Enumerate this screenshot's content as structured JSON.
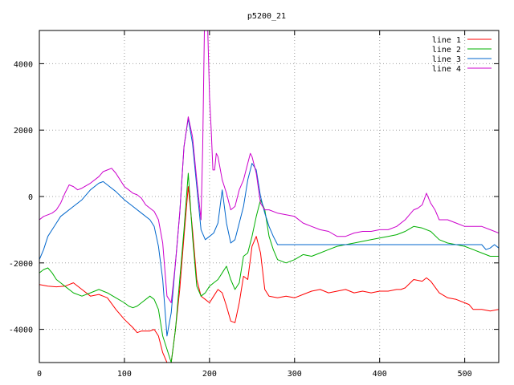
{
  "chart_data": {
    "type": "line",
    "title": "p5200_21",
    "xlabel": "",
    "ylabel": "",
    "xlim": [
      0,
      540
    ],
    "ylim": [
      -5000,
      5000
    ],
    "x_ticks": [
      0,
      100,
      200,
      300,
      400,
      500
    ],
    "y_ticks": [
      -4000,
      -2000,
      0,
      2000,
      4000
    ],
    "grid": true,
    "legend_position": "top-right",
    "series": [
      {
        "name": "line 1",
        "color": "#ff0000",
        "points": [
          [
            0,
            -2650
          ],
          [
            10,
            -2700
          ],
          [
            20,
            -2720
          ],
          [
            30,
            -2700
          ],
          [
            40,
            -2600
          ],
          [
            50,
            -2800
          ],
          [
            60,
            -3000
          ],
          [
            70,
            -2950
          ],
          [
            80,
            -3050
          ],
          [
            90,
            -3400
          ],
          [
            100,
            -3700
          ],
          [
            110,
            -3950
          ],
          [
            115,
            -4100
          ],
          [
            120,
            -4050
          ],
          [
            130,
            -4050
          ],
          [
            135,
            -4000
          ],
          [
            140,
            -4200
          ],
          [
            145,
            -4700
          ],
          [
            150,
            -5000
          ],
          [
            155,
            -5000
          ],
          [
            160,
            -4000
          ],
          [
            165,
            -2800
          ],
          [
            170,
            -1200
          ],
          [
            175,
            300
          ],
          [
            180,
            -1000
          ],
          [
            185,
            -2500
          ],
          [
            190,
            -3000
          ],
          [
            195,
            -3100
          ],
          [
            200,
            -3200
          ],
          [
            205,
            -3000
          ],
          [
            210,
            -2800
          ],
          [
            215,
            -2900
          ],
          [
            220,
            -3300
          ],
          [
            225,
            -3750
          ],
          [
            230,
            -3800
          ],
          [
            235,
            -3200
          ],
          [
            240,
            -2400
          ],
          [
            245,
            -2500
          ],
          [
            250,
            -1500
          ],
          [
            255,
            -1200
          ],
          [
            260,
            -1700
          ],
          [
            265,
            -2800
          ],
          [
            270,
            -3000
          ],
          [
            280,
            -3050
          ],
          [
            290,
            -3000
          ],
          [
            300,
            -3050
          ],
          [
            310,
            -2950
          ],
          [
            320,
            -2850
          ],
          [
            330,
            -2800
          ],
          [
            340,
            -2900
          ],
          [
            350,
            -2850
          ],
          [
            360,
            -2800
          ],
          [
            370,
            -2900
          ],
          [
            380,
            -2850
          ],
          [
            390,
            -2900
          ],
          [
            400,
            -2850
          ],
          [
            410,
            -2850
          ],
          [
            420,
            -2800
          ],
          [
            425,
            -2800
          ],
          [
            430,
            -2750
          ],
          [
            440,
            -2500
          ],
          [
            450,
            -2550
          ],
          [
            455,
            -2450
          ],
          [
            460,
            -2550
          ],
          [
            470,
            -2900
          ],
          [
            480,
            -3050
          ],
          [
            490,
            -3100
          ],
          [
            500,
            -3200
          ],
          [
            505,
            -3250
          ],
          [
            510,
            -3400
          ],
          [
            520,
            -3400
          ],
          [
            530,
            -3450
          ],
          [
            540,
            -3400
          ]
        ]
      },
      {
        "name": "line 2",
        "color": "#00b000",
        "points": [
          [
            0,
            -2300
          ],
          [
            5,
            -2200
          ],
          [
            10,
            -2150
          ],
          [
            15,
            -2300
          ],
          [
            20,
            -2500
          ],
          [
            25,
            -2600
          ],
          [
            30,
            -2700
          ],
          [
            40,
            -2900
          ],
          [
            50,
            -3000
          ],
          [
            60,
            -2900
          ],
          [
            70,
            -2800
          ],
          [
            80,
            -2900
          ],
          [
            90,
            -3050
          ],
          [
            100,
            -3200
          ],
          [
            105,
            -3300
          ],
          [
            110,
            -3350
          ],
          [
            115,
            -3300
          ],
          [
            120,
            -3200
          ],
          [
            130,
            -3000
          ],
          [
            135,
            -3100
          ],
          [
            140,
            -3400
          ],
          [
            145,
            -4200
          ],
          [
            150,
            -4600
          ],
          [
            155,
            -5000
          ],
          [
            160,
            -4000
          ],
          [
            165,
            -2500
          ],
          [
            170,
            -1000
          ],
          [
            175,
            700
          ],
          [
            180,
            -1200
          ],
          [
            185,
            -2700
          ],
          [
            190,
            -3000
          ],
          [
            195,
            -2900
          ],
          [
            200,
            -2700
          ],
          [
            205,
            -2600
          ],
          [
            210,
            -2500
          ],
          [
            215,
            -2300
          ],
          [
            220,
            -2100
          ],
          [
            225,
            -2500
          ],
          [
            230,
            -2800
          ],
          [
            235,
            -2600
          ],
          [
            240,
            -1800
          ],
          [
            245,
            -1700
          ],
          [
            250,
            -1200
          ],
          [
            255,
            -600
          ],
          [
            260,
            -100
          ],
          [
            265,
            -400
          ],
          [
            270,
            -1200
          ],
          [
            275,
            -1600
          ],
          [
            280,
            -1900
          ],
          [
            290,
            -2000
          ],
          [
            300,
            -1900
          ],
          [
            310,
            -1750
          ],
          [
            320,
            -1800
          ],
          [
            330,
            -1700
          ],
          [
            340,
            -1600
          ],
          [
            350,
            -1500
          ],
          [
            360,
            -1450
          ],
          [
            370,
            -1400
          ],
          [
            380,
            -1350
          ],
          [
            390,
            -1300
          ],
          [
            400,
            -1250
          ],
          [
            410,
            -1200
          ],
          [
            420,
            -1150
          ],
          [
            430,
            -1050
          ],
          [
            440,
            -900
          ],
          [
            450,
            -950
          ],
          [
            460,
            -1050
          ],
          [
            470,
            -1300
          ],
          [
            480,
            -1400
          ],
          [
            490,
            -1450
          ],
          [
            500,
            -1500
          ],
          [
            510,
            -1600
          ],
          [
            520,
            -1700
          ],
          [
            530,
            -1800
          ],
          [
            540,
            -1800
          ]
        ]
      },
      {
        "name": "line 3",
        "color": "#0066cc",
        "points": [
          [
            0,
            -1900
          ],
          [
            5,
            -1600
          ],
          [
            10,
            -1200
          ],
          [
            15,
            -1000
          ],
          [
            20,
            -800
          ],
          [
            25,
            -600
          ],
          [
            30,
            -500
          ],
          [
            40,
            -300
          ],
          [
            50,
            -100
          ],
          [
            60,
            200
          ],
          [
            70,
            400
          ],
          [
            75,
            450
          ],
          [
            80,
            350
          ],
          [
            90,
            150
          ],
          [
            100,
            -100
          ],
          [
            110,
            -300
          ],
          [
            120,
            -500
          ],
          [
            130,
            -700
          ],
          [
            135,
            -900
          ],
          [
            140,
            -1500
          ],
          [
            145,
            -2500
          ],
          [
            150,
            -4200
          ],
          [
            155,
            -3500
          ],
          [
            160,
            -2000
          ],
          [
            165,
            -500
          ],
          [
            170,
            1500
          ],
          [
            175,
            2350
          ],
          [
            180,
            1600
          ],
          [
            185,
            300
          ],
          [
            190,
            -1000
          ],
          [
            195,
            -1300
          ],
          [
            200,
            -1200
          ],
          [
            205,
            -1100
          ],
          [
            210,
            -800
          ],
          [
            215,
            200
          ],
          [
            220,
            -800
          ],
          [
            225,
            -1400
          ],
          [
            230,
            -1300
          ],
          [
            235,
            -800
          ],
          [
            240,
            -300
          ],
          [
            245,
            500
          ],
          [
            250,
            1000
          ],
          [
            255,
            800
          ],
          [
            260,
            0
          ],
          [
            265,
            -500
          ],
          [
            270,
            -900
          ],
          [
            275,
            -1200
          ],
          [
            280,
            -1450
          ],
          [
            300,
            -1450
          ],
          [
            350,
            -1450
          ],
          [
            400,
            -1450
          ],
          [
            450,
            -1450
          ],
          [
            500,
            -1450
          ],
          [
            520,
            -1450
          ],
          [
            525,
            -1600
          ],
          [
            530,
            -1550
          ],
          [
            535,
            -1450
          ],
          [
            540,
            -1550
          ]
        ]
      },
      {
        "name": "line 4",
        "color": "#cc00cc",
        "points": [
          [
            0,
            -700
          ],
          [
            5,
            -600
          ],
          [
            10,
            -550
          ],
          [
            15,
            -500
          ],
          [
            20,
            -400
          ],
          [
            25,
            -200
          ],
          [
            30,
            100
          ],
          [
            35,
            350
          ],
          [
            40,
            300
          ],
          [
            45,
            200
          ],
          [
            50,
            250
          ],
          [
            60,
            400
          ],
          [
            70,
            600
          ],
          [
            75,
            750
          ],
          [
            80,
            800
          ],
          [
            85,
            850
          ],
          [
            90,
            700
          ],
          [
            95,
            500
          ],
          [
            100,
            300
          ],
          [
            105,
            200
          ],
          [
            110,
            100
          ],
          [
            115,
            50
          ],
          [
            120,
            -50
          ],
          [
            125,
            -250
          ],
          [
            130,
            -350
          ],
          [
            135,
            -450
          ],
          [
            140,
            -700
          ],
          [
            145,
            -1400
          ],
          [
            150,
            -3000
          ],
          [
            155,
            -3200
          ],
          [
            160,
            -2000
          ],
          [
            165,
            -500
          ],
          [
            170,
            1500
          ],
          [
            175,
            2400
          ],
          [
            180,
            1800
          ],
          [
            185,
            500
          ],
          [
            190,
            -700
          ],
          [
            192,
            1500
          ],
          [
            194,
            5000
          ],
          [
            198,
            5000
          ],
          [
            200,
            3000
          ],
          [
            202,
            2000
          ],
          [
            204,
            800
          ],
          [
            206,
            800
          ],
          [
            208,
            1300
          ],
          [
            210,
            1200
          ],
          [
            215,
            500
          ],
          [
            220,
            100
          ],
          [
            225,
            -400
          ],
          [
            230,
            -300
          ],
          [
            235,
            200
          ],
          [
            240,
            500
          ],
          [
            245,
            1000
          ],
          [
            248,
            1300
          ],
          [
            250,
            1200
          ],
          [
            255,
            700
          ],
          [
            260,
            -200
          ],
          [
            265,
            -400
          ],
          [
            270,
            -400
          ],
          [
            280,
            -500
          ],
          [
            290,
            -550
          ],
          [
            300,
            -600
          ],
          [
            310,
            -800
          ],
          [
            320,
            -900
          ],
          [
            330,
            -1000
          ],
          [
            340,
            -1050
          ],
          [
            350,
            -1200
          ],
          [
            360,
            -1200
          ],
          [
            370,
            -1100
          ],
          [
            380,
            -1050
          ],
          [
            390,
            -1050
          ],
          [
            400,
            -1000
          ],
          [
            410,
            -1000
          ],
          [
            420,
            -900
          ],
          [
            430,
            -700
          ],
          [
            440,
            -400
          ],
          [
            445,
            -350
          ],
          [
            450,
            -250
          ],
          [
            455,
            100
          ],
          [
            460,
            -200
          ],
          [
            465,
            -400
          ],
          [
            470,
            -700
          ],
          [
            480,
            -700
          ],
          [
            490,
            -800
          ],
          [
            500,
            -900
          ],
          [
            510,
            -900
          ],
          [
            520,
            -900
          ],
          [
            530,
            -1000
          ],
          [
            540,
            -1100
          ]
        ]
      }
    ]
  }
}
